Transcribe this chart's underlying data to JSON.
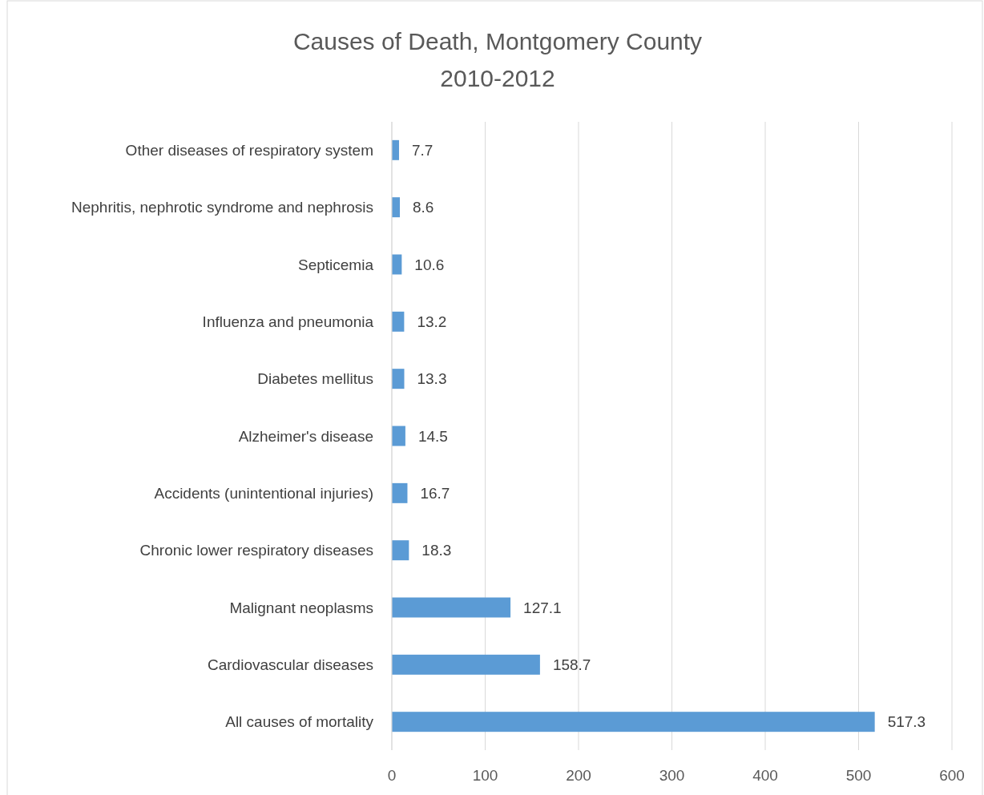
{
  "chart_data": {
    "type": "bar",
    "orientation": "horizontal",
    "title": "Causes of Death, Montgomery County\n2010-2012",
    "categories": [
      "Other diseases of respiratory system",
      "Nephritis, nephrotic syndrome and nephrosis",
      "Septicemia",
      "Influenza and pneumonia",
      "Diabetes mellitus",
      "Alzheimer's disease",
      "Accidents (unintentional injuries)",
      "Chronic lower respiratory diseases",
      "Malignant neoplasms",
      "Cardiovascular diseases",
      "All causes of mortality"
    ],
    "values": [
      7.7,
      8.6,
      10.6,
      13.2,
      13.3,
      14.5,
      16.7,
      18.3,
      127.1,
      158.7,
      517.3
    ],
    "color": "#5b9bd5",
    "xlim": [
      0,
      600
    ],
    "xticks": [
      0,
      100,
      200,
      300,
      400,
      500,
      600
    ],
    "grid": "x",
    "data_labels": true
  }
}
